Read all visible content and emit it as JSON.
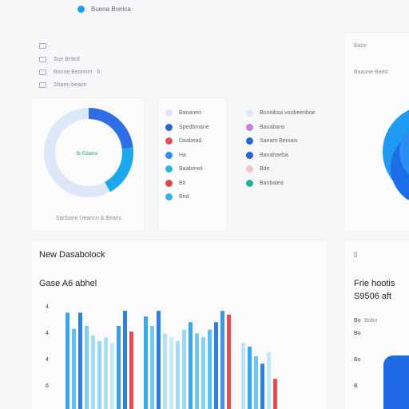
{
  "topbar": {
    "title": "Buena Bonica"
  },
  "left_menu": [
    {
      "label": ""
    },
    {
      "label": "Sue Brited"
    },
    {
      "label": "Bonne Beonnet",
      "extra": "8"
    },
    {
      "label": "Shaen beaon"
    }
  ],
  "donut": {
    "center_label": "Br Eibeins",
    "caption": "Sacbane Ueanco & Beans",
    "fill_fraction": 0.42,
    "colors": {
      "track": "#dce8f8",
      "primary": "#2f6ee6",
      "secondary": "#1ba7ee",
      "label": "#1fa36b"
    }
  },
  "legend_a": [
    {
      "label": "Bananeo",
      "color": "#dfe6f6"
    },
    {
      "label": "Spedbmane",
      "color": "#2c63d8"
    },
    {
      "label": "Daabead",
      "color": "#e34d57"
    },
    {
      "label": "Ha",
      "color": "#2a8ff0"
    },
    {
      "label": "Baabenel",
      "color": "#2bb6ea"
    },
    {
      "label": "Bit",
      "color": "#e04848"
    },
    {
      "label": "Bnd",
      "color": "#2fb5ea"
    }
  ],
  "legend_b": [
    {
      "label": "Bnnnibsa voobeenboe",
      "color": "#e3e6f3"
    },
    {
      "label": "Baoabans",
      "color": "#c77fcf"
    },
    {
      "label": "Saeam Bemais",
      "color": "#2b62d6"
    },
    {
      "label": "Banahaeba",
      "color": "#2c61d5"
    },
    {
      "label": "Bde",
      "color": "#f3c3c6"
    },
    {
      "label": "Banbaiea",
      "color": "#1fb59a"
    }
  ],
  "right_panel": {
    "tiny_top": "Bace",
    "tiny_mid": "Baaune Baed"
  },
  "dashboard": {
    "title": "New Dasabolock",
    "subtitle": "Gase A6 abhel",
    "y_ticks": [
      "4",
      "4",
      "4",
      "6"
    ]
  },
  "right_bottom": {
    "title": "Frie hootis",
    "value": "S9506 aft",
    "ticks": [
      "Bo",
      "Bo",
      "Bo",
      "B"
    ],
    "tiny_lines": [
      "Bobo"
    ]
  },
  "chart_data": {
    "type": "bar",
    "bars": [
      {
        "value": 102,
        "color": "#3aa6ec"
      },
      {
        "value": 85,
        "color": "#5cc3ef"
      },
      {
        "value": 102,
        "color": "#2f7fe0"
      },
      {
        "value": 88,
        "color": "#7fd0f2"
      },
      {
        "value": 78,
        "color": "#a4dcf3"
      },
      {
        "value": 72,
        "color": "#9ad8f2"
      },
      {
        "value": 76,
        "color": "#aee0f4"
      },
      {
        "value": 70,
        "color": "#c7eaf6"
      },
      {
        "value": 88,
        "color": "#3d9ee9"
      },
      {
        "value": 104,
        "color": "#2f7fe0"
      },
      {
        "value": 82,
        "color": "#e64c53"
      },
      {
        "value": 98,
        "color": "#3aa6ec"
      },
      {
        "value": 88,
        "color": "#6dcaf0"
      },
      {
        "value": 104,
        "color": "#2f7fe0"
      },
      {
        "value": 80,
        "color": "#b2e1f4"
      },
      {
        "value": 76,
        "color": "#c8ebf7"
      },
      {
        "value": 72,
        "color": "#a8dcf3"
      },
      {
        "value": 84,
        "color": "#9ed7f2"
      },
      {
        "value": 92,
        "color": "#3aa6ec"
      },
      {
        "value": 80,
        "color": "#6ec8ef"
      },
      {
        "value": 76,
        "color": "#88d2f1"
      },
      {
        "value": 84,
        "color": "#5bbfee"
      },
      {
        "value": 92,
        "color": "#2f7fe0"
      },
      {
        "value": 104,
        "color": "#3e98e7"
      },
      {
        "value": 100,
        "color": "#e64c53"
      },
      {
        "value": 70,
        "color": "#b8e4f5"
      },
      {
        "value": 66,
        "color": "#3aa6ec"
      },
      {
        "value": 56,
        "color": "#6bc7ef"
      },
      {
        "value": 48,
        "color": "#2f7fe0"
      },
      {
        "value": 60,
        "color": "#c4e9f6"
      },
      {
        "value": 32,
        "color": "#e64c53"
      }
    ],
    "ylim": [
      0,
      110
    ]
  }
}
